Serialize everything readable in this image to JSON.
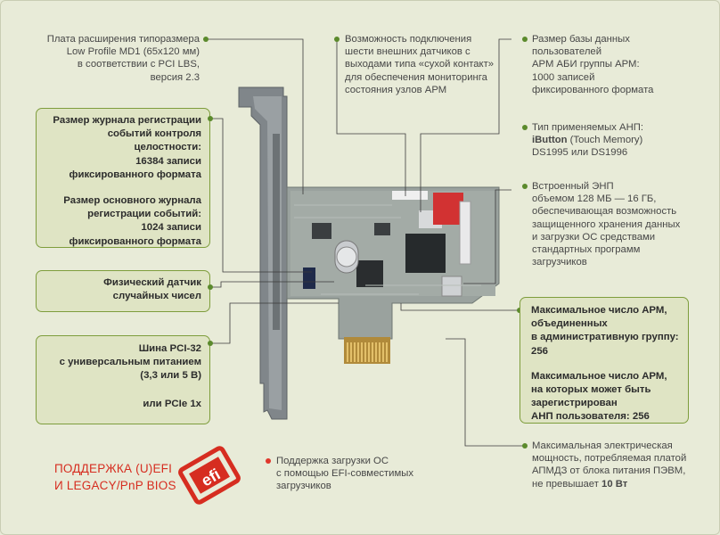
{
  "notes": {
    "board": [
      "Плата расширения типоразмера",
      "Low Profile MD1 (65x120 мм)",
      "в соответствии с PCI LBS,",
      "версия 2.3"
    ],
    "sensors": [
      "Возможность подключения",
      "шести внешних датчиков с",
      "выходами типа «сухой контакт»",
      "для обеспечения мониторинга",
      "состояния узлов АРМ"
    ],
    "db": [
      "Размер базы данных",
      "пользователей",
      "АРМ АБИ группы АРМ:",
      "1000 записей",
      "фиксированного формата"
    ],
    "anp_pre": "Тип применяемых АНП:",
    "anp_bold": "iButton",
    "anp_rest": " (Touch Memory)",
    "anp_models": "DS1995 или DS1996",
    "enp": [
      "Встроенный ЭНП",
      "объемом 128 МБ — 16 ГБ,",
      "обеспечивающая возможность",
      "защищенного хранения данных",
      "и загрузки ОС средствами",
      "стандартных программ",
      "загрузчиков"
    ],
    "power": [
      "Максимальная электрическая",
      "мощность, потребляемая платой",
      "АПМДЗ от блока питания ПЭВМ,"
    ],
    "power_last_pre": "не превышает ",
    "power_last_bold": "10 Вт",
    "efi_note": [
      "Поддержка загрузки ОС",
      "с помощью EFI-совместимых",
      "загрузчиков"
    ]
  },
  "boxes": {
    "journal": {
      "a": [
        "Размер журнала регистрации",
        "событий контроля целостности:",
        "16384 записи",
        "фиксированного формата"
      ],
      "b": [
        "Размер основного журнала",
        "регистрации событий:",
        "1024 записи",
        "фиксированного формата"
      ]
    },
    "rng": [
      "Физический датчик",
      "случайных чисел"
    ],
    "bus": {
      "a": [
        "Шина PCI-32",
        "с универсальным питанием",
        "(3,3 или 5 В)"
      ],
      "b": [
        "или PCIe 1x"
      ]
    },
    "arm": {
      "a": [
        "Максимальное число АРМ,",
        "объединенных",
        "в административную группу: 256"
      ],
      "b": [
        "Максимальное число АРМ,",
        "на которых может быть",
        "зарегистрирован",
        "АНП пользователя: 256"
      ]
    }
  },
  "feature": [
    "ПОДДЕРЖКА (U)EFI",
    "И LEGACY/PnP BIOS"
  ],
  "logo_text": "efi",
  "colors": {
    "accent": "#7e9d3c",
    "red": "#d62d20",
    "board": "#8b9395",
    "bracket": "#7c8285"
  }
}
